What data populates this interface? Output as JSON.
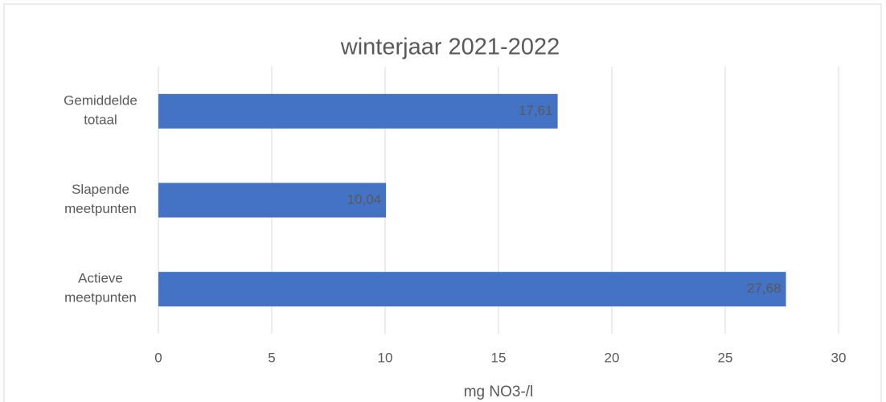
{
  "chart_data": {
    "type": "bar",
    "orientation": "horizontal",
    "title": "winterjaar 2021-2022",
    "categories": [
      "Gemiddelde totaal",
      "Slapende meetpunten",
      "Actieve meetpunten"
    ],
    "values": [
      17.61,
      10.04,
      27.68
    ],
    "value_labels": [
      "17,61",
      "10,04",
      "27,68"
    ],
    "color": "#4472c4",
    "xlabel": "mg NO3-/l",
    "xlim": [
      0,
      30
    ],
    "xticks": [
      0,
      5,
      10,
      15,
      20,
      25,
      30
    ],
    "grid": true
  }
}
